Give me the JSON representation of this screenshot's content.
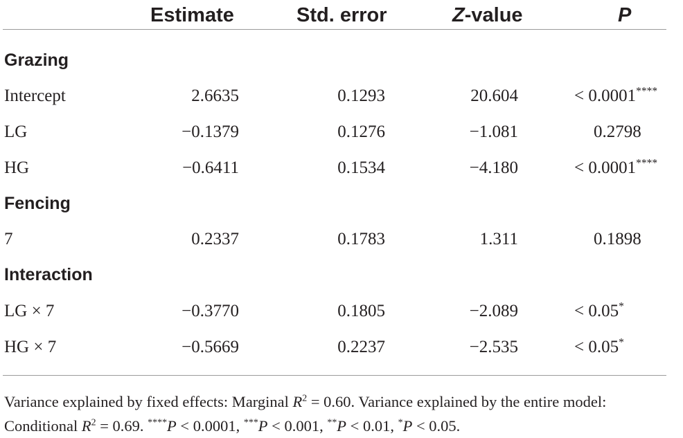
{
  "table": {
    "headers": {
      "estimate": "Estimate",
      "std_error": "Std. error",
      "z_value_italic": "Z",
      "z_value_rest": "-value",
      "p": "P"
    },
    "sections": [
      {
        "title": "Grazing",
        "rows": [
          {
            "label": "Intercept",
            "estimate": "2.6635",
            "std_error": "0.1293",
            "z_value": "20.604",
            "p": "< 0.0001****"
          },
          {
            "label": "LG",
            "estimate": "−0.1379",
            "std_error": "0.1276",
            "z_value": "−1.081",
            "p": "0.2798"
          },
          {
            "label": "HG",
            "estimate": "−0.6411",
            "std_error": "0.1534",
            "z_value": "−4.180",
            "p": "< 0.0001****"
          }
        ]
      },
      {
        "title": "Fencing",
        "rows": [
          {
            "label": "7",
            "estimate": "0.2337",
            "std_error": "0.1783",
            "z_value": "1.311",
            "p": "0.1898"
          }
        ]
      },
      {
        "title": "Interaction",
        "rows": [
          {
            "label": "LG × 7",
            "estimate": "−0.3770",
            "std_error": "0.1805",
            "z_value": "−2.089",
            "p": "< 0.05*"
          },
          {
            "label": "HG × 7",
            "estimate": "−0.5669",
            "std_error": "0.2237",
            "z_value": "−2.535",
            "p": "< 0.05*"
          }
        ]
      }
    ]
  },
  "footnote": {
    "part1": "Variance explained by fixed effects: Marginal ",
    "r_symbol": "R",
    "superscript": "2",
    "part2": " = 0.60. Variance explained by the entire model: Conditional ",
    "part3": " = 0.69. ",
    "stars4": "****",
    "p_symbol": "P",
    "t4": " < 0.0001, ",
    "stars3": "***",
    "t3": " < 0.001, ",
    "stars2": "**",
    "t2": " < 0.01, ",
    "stars1": "*",
    "t1": " < 0.05."
  }
}
